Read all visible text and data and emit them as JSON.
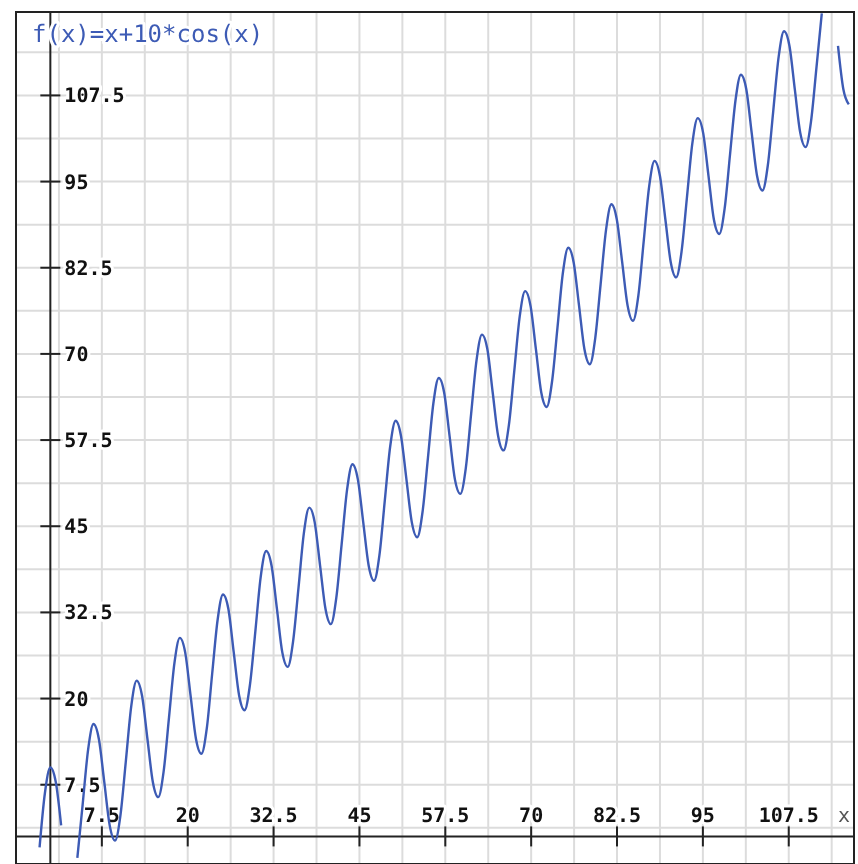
{
  "chart_data": {
    "type": "line",
    "title": "f(x)=x+10*cos(x)",
    "xlabel": "x",
    "x": [
      -1.57,
      -0.79,
      0,
      0.79,
      1.57,
      2.36,
      3.14,
      3.93,
      4.71,
      5.5,
      6.28,
      7.07,
      7.85,
      8.64,
      9.42,
      10.21,
      11.0,
      11.78,
      12.57,
      13.35,
      14.14,
      14.92,
      15.71,
      16.49,
      17.28,
      18.06,
      18.85,
      19.63,
      20.42,
      21.21,
      21.99,
      22.78,
      23.56,
      24.35,
      25.13,
      25.92,
      26.7,
      27.49,
      28.27,
      29.06,
      29.85,
      30.63,
      31.42,
      32.2,
      32.99,
      33.77,
      34.56,
      35.34,
      36.13,
      36.91,
      37.7,
      38.48,
      39.27,
      40.06,
      40.84,
      41.63,
      42.41,
      43.2,
      43.98,
      44.77,
      45.55,
      46.34,
      47.12,
      47.91,
      48.69,
      49.48,
      50.27,
      51.05,
      51.84,
      52.62,
      53.41,
      54.19,
      54.98,
      55.76,
      56.55,
      57.33,
      58.12,
      58.9,
      59.69,
      60.48,
      61.26,
      62.05,
      62.83,
      63.62,
      64.4,
      65.19,
      65.97,
      66.76,
      67.54,
      68.33,
      69.12,
      69.9,
      70.69,
      71.47,
      72.26,
      73.04,
      73.83,
      74.61,
      75.4,
      76.18,
      76.97,
      77.75,
      78.54,
      79.33,
      80.11,
      80.9,
      81.68,
      82.47,
      83.25,
      84.04,
      84.82,
      85.61,
      86.39,
      87.18,
      87.96,
      88.75,
      89.54,
      90.32,
      91.11,
      91.89,
      92.68,
      93.46,
      94.25,
      95.03,
      95.82,
      96.6,
      97.39,
      98.17,
      98.96,
      99.75,
      100.53,
      101.32,
      102.1,
      102.89,
      103.67,
      104.46,
      105.24,
      106.03,
      106.81,
      107.6,
      108.38,
      109.17,
      109.96,
      110.74,
      111.53,
      112.31,
      113.1,
      113.88,
      114.67,
      115.45,
      116.24
    ],
    "series": [
      {
        "color": "#3d5bb5",
        "values": [
          -1.6,
          6.3,
          10.0,
          7.9,
          1.6,
          null,
          null,
          -3.1,
          4.7,
          12.6,
          16.3,
          14.1,
          7.9,
          1.6,
          -0.6,
          3.1,
          11.0,
          18.9,
          22.6,
          20.4,
          14.1,
          7.9,
          5.7,
          9.4,
          17.3,
          25.1,
          28.8,
          26.7,
          20.4,
          14.1,
          12.0,
          15.7,
          23.6,
          31.4,
          35.1,
          33.0,
          26.7,
          20.4,
          18.3,
          22.0,
          29.8,
          37.7,
          41.4,
          39.3,
          33.0,
          26.7,
          24.6,
          28.3,
          36.1,
          44.0,
          47.7,
          45.6,
          39.3,
          33.0,
          30.8,
          34.6,
          42.4,
          50.3,
          54.0,
          51.8,
          45.6,
          39.3,
          37.1,
          40.8,
          48.7,
          56.6,
          60.3,
          58.1,
          51.8,
          45.6,
          43.4,
          47.1,
          55.0,
          62.8,
          66.5,
          64.4,
          58.1,
          51.8,
          49.7,
          53.4,
          61.3,
          69.1,
          72.8,
          70.7,
          64.4,
          58.1,
          56.0,
          59.7,
          67.5,
          75.4,
          79.1,
          77.0,
          70.7,
          64.4,
          62.3,
          66.0,
          73.8,
          81.7,
          85.4,
          83.3,
          77.0,
          70.7,
          68.5,
          72.3,
          80.1,
          88.0,
          91.7,
          89.5,
          83.3,
          77.0,
          74.8,
          78.5,
          86.4,
          94.3,
          98.0,
          95.8,
          89.5,
          83.3,
          81.1,
          84.8,
          92.7,
          100.5,
          104.2,
          102.1,
          95.8,
          89.5,
          87.4,
          91.1,
          99.0,
          106.8,
          110.5,
          108.4,
          102.1,
          95.8,
          93.7,
          97.4,
          105.2,
          113.1,
          116.8,
          114.7,
          108.4,
          102.1,
          100.0,
          103.7,
          111.5,
          119.4,
          null,
          null,
          114.7,
          108.4,
          106.2
        ]
      }
    ],
    "xlim": [
      -5,
      117
    ],
    "ylim": [
      -4,
      119.6
    ],
    "xticks": [
      7.5,
      20,
      32.5,
      45,
      57.5,
      70,
      82.5,
      95,
      107.5
    ],
    "yticks": [
      7.5,
      20,
      32.5,
      45,
      57.5,
      70,
      82.5,
      95,
      107.5
    ],
    "grid": true,
    "marker": "none",
    "line_style": "solid"
  }
}
